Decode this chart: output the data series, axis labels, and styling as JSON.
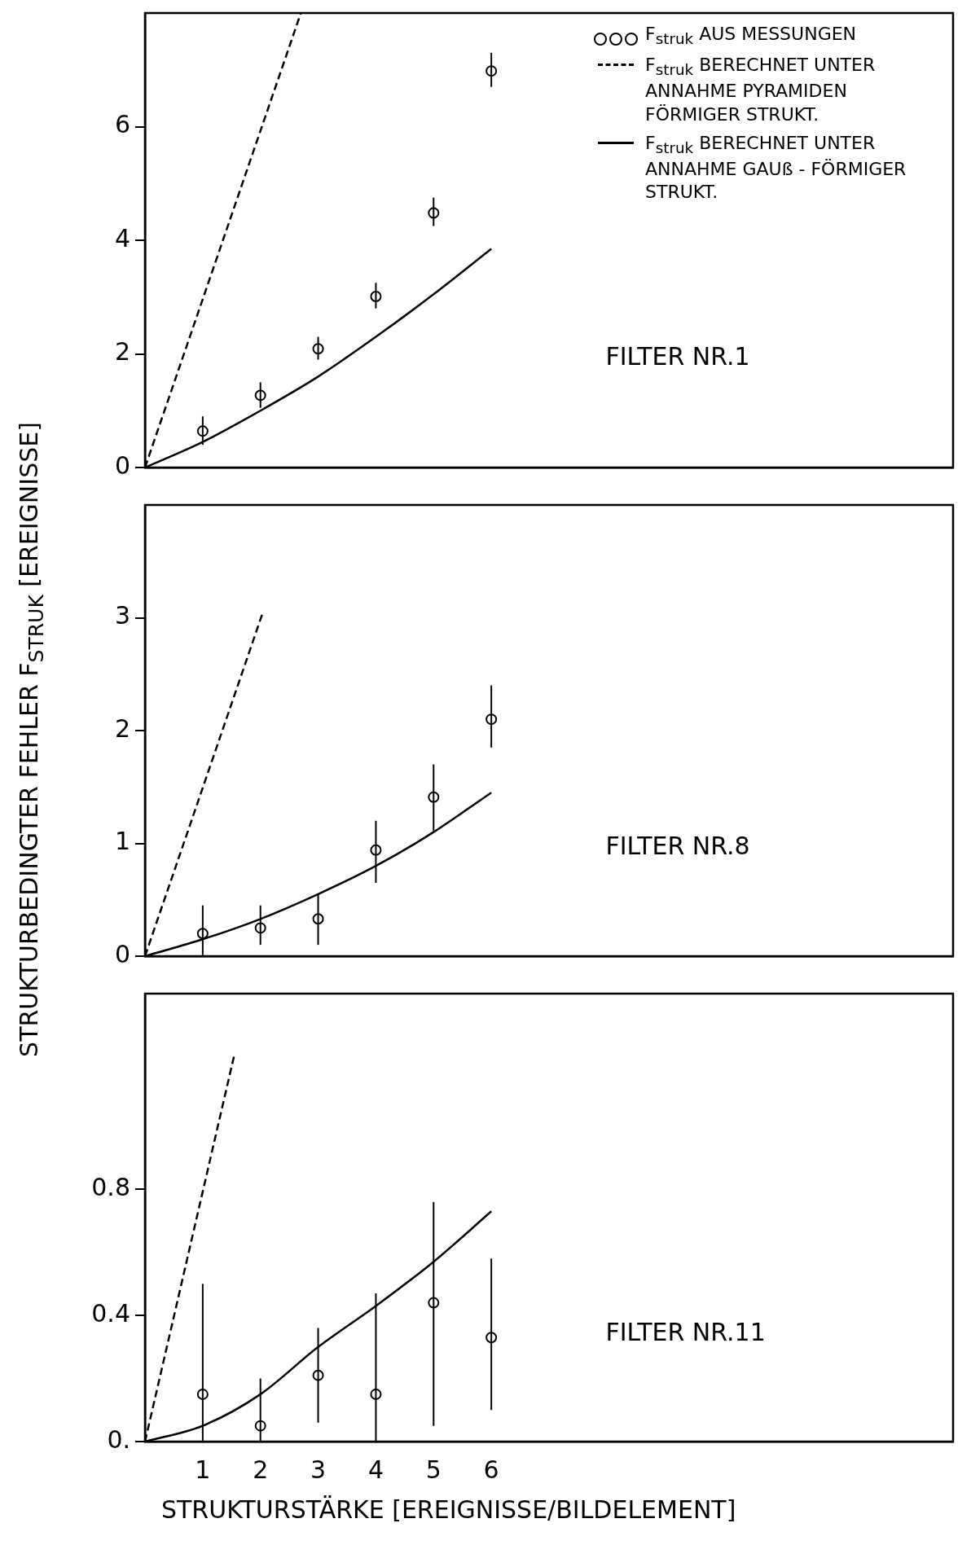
{
  "chart_data": [
    {
      "type": "scatter",
      "x": [
        1,
        2,
        3,
        4,
        5,
        6
      ],
      "xlim": [
        0,
        14
      ],
      "xticks": [
        1,
        2,
        3,
        4,
        5,
        6
      ],
      "ylim": [
        0,
        8
      ],
      "yticks": [
        0,
        2,
        4,
        6
      ],
      "tick_labels": "y",
      "grid": false,
      "legend": "top right",
      "annotations": [
        "FILTER NR.1"
      ],
      "series": [
        {
          "name": "F$_{struk}$ AUS MESSUNGEN",
          "type": "scatter",
          "marker": "circle",
          "color": "#000000",
          "values": [
            0.64,
            1.27,
            2.09,
            3.01,
            4.48,
            6.98
          ],
          "errors": [
            [
              0.4,
              0.9
            ],
            [
              1.05,
              1.5
            ],
            [
              1.9,
              2.3
            ],
            [
              2.8,
              3.25
            ],
            [
              4.25,
              4.75
            ],
            [
              6.7,
              7.3
            ]
          ]
        },
        {
          "name": "F$_{struk}$ BERECHNET UNTER ANNAHME PYRAMIDEN FÖRMIGER STRUKT.",
          "type": "line",
          "line_style": "dashed",
          "color": "#000000",
          "x": [
            0,
            2.7
          ],
          "values": [
            0,
            8
          ]
        },
        {
          "name": "F$_{struk}$ BERECHNET UNTER ANNAHME GAUß - FÖRMIGER STRUKT.",
          "type": "line",
          "line_style": "solid",
          "color": "#000000",
          "x": [
            0,
            1,
            2,
            3,
            4,
            5,
            6
          ],
          "values": [
            0,
            0.45,
            1.0,
            1.6,
            2.3,
            3.05,
            3.85
          ]
        }
      ]
    },
    {
      "type": "scatter",
      "x": [
        1,
        2,
        3,
        4,
        5,
        6
      ],
      "xlim": [
        0,
        14
      ],
      "xticks": [
        1,
        2,
        3,
        4,
        5,
        6
      ],
      "ylim": [
        0,
        4
      ],
      "yticks": [
        0,
        1,
        2,
        3
      ],
      "tick_labels": "y",
      "grid": false,
      "ylabel": "STRUKTURBEDINGTER FEHLER F$_{STRUK}$ [EREIGNISSE]",
      "annotations": [
        "FILTER NR.8"
      ],
      "series": [
        {
          "type": "scatter",
          "marker": "circle",
          "color": "#000000",
          "values": [
            0.2,
            0.25,
            0.33,
            0.94,
            1.41,
            2.1
          ],
          "errors": [
            [
              0,
              0.45
            ],
            [
              0.1,
              0.45
            ],
            [
              0.1,
              0.55
            ],
            [
              0.65,
              1.2
            ],
            [
              1.1,
              1.7
            ],
            [
              1.85,
              2.4
            ]
          ]
        },
        {
          "type": "line",
          "line_style": "dashed",
          "color": "#000000",
          "x": [
            0,
            2.03
          ],
          "values": [
            0,
            3.03
          ]
        },
        {
          "type": "line",
          "line_style": "solid",
          "color": "#000000",
          "x": [
            0,
            1,
            2,
            3,
            4,
            5,
            6
          ],
          "values": [
            0,
            0.15,
            0.33,
            0.55,
            0.8,
            1.1,
            1.45
          ]
        }
      ]
    },
    {
      "type": "scatter",
      "x": [
        1,
        2,
        3,
        4,
        5,
        6
      ],
      "xlim": [
        0,
        14
      ],
      "xticks": [
        1,
        2,
        3,
        4,
        5,
        6
      ],
      "ylim": [
        0,
        1.42
      ],
      "yticks": [
        {
          "value": 0,
          "label": "0."
        },
        0.4,
        0.8
      ],
      "grid": false,
      "xlabel": "STRUKTURSTÄRKE [EREIGNISSE/BILDELEMENT]",
      "annotations": [
        "FILTER NR.11"
      ],
      "series": [
        {
          "type": "scatter",
          "marker": "circle",
          "color": "#000000",
          "values": [
            0.15,
            0.05,
            0.21,
            0.15,
            0.44,
            0.33
          ],
          "errors": [
            [
              0,
              0.5
            ],
            [
              0,
              0.2
            ],
            [
              0.06,
              0.36
            ],
            [
              0,
              0.47
            ],
            [
              0.05,
              0.76
            ],
            [
              0.1,
              0.58
            ]
          ]
        },
        {
          "type": "line",
          "line_style": "dashed",
          "color": "#000000",
          "x": [
            0,
            1.54
          ],
          "values": [
            0,
            1.22
          ]
        },
        {
          "type": "line",
          "line_style": "solid",
          "color": "#000000",
          "x": [
            0,
            1,
            2,
            3,
            4,
            5,
            6
          ],
          "values": [
            0,
            0.05,
            0.15,
            0.3,
            0.43,
            0.57,
            0.73
          ]
        }
      ]
    }
  ]
}
